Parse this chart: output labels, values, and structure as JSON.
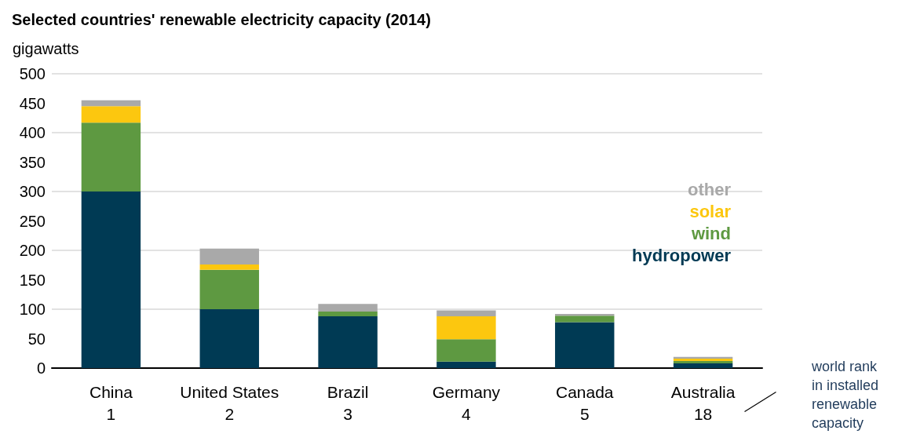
{
  "chart_data": {
    "type": "bar",
    "title": "Selected countries' renewable electricity capacity (2014)",
    "ylabel": "gigawatts",
    "categories": [
      "China\n1",
      "United States\n2",
      "Brazil\n3",
      "Germany\n4",
      "Canada\n5",
      "Australia\n18"
    ],
    "stacked": true,
    "series": [
      {
        "name": "hydropower",
        "color": "#003a54",
        "values": [
          300,
          100,
          88,
          11,
          78,
          8
        ]
      },
      {
        "name": "wind",
        "color": "#5e9941",
        "values": [
          117,
          67,
          8,
          38,
          11,
          4
        ]
      },
      {
        "name": "solar",
        "color": "#fcc70f",
        "values": [
          28,
          9,
          null,
          39,
          null,
          4
        ]
      },
      {
        "name": "other",
        "color": "#a9a9a9",
        "values": [
          10,
          27,
          13,
          10,
          3,
          3
        ]
      }
    ],
    "ylim": [
      0,
      500
    ],
    "yticks": [
      0,
      50,
      100,
      150,
      200,
      250,
      300,
      350,
      400,
      450,
      500
    ],
    "grid": "y",
    "legend": "right",
    "annotations": [
      "world rank\nin installed\nrenewable\ncapacity"
    ]
  }
}
